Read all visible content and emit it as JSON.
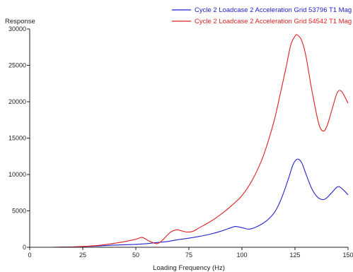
{
  "chart_data": {
    "type": "line",
    "xlabel": "Loading Frequency (Hz)",
    "ylabel": "Response",
    "xlim": [
      0,
      150
    ],
    "ylim": [
      0,
      30000
    ],
    "xticks": [
      0,
      25,
      50,
      75,
      100,
      125,
      150
    ],
    "yticks": [
      0,
      5000,
      10000,
      15000,
      20000,
      25000,
      30000
    ],
    "xtick_labels": [
      "0",
      "25",
      "50",
      "75",
      "100",
      "125",
      "150"
    ],
    "ytick_labels": [
      "0",
      "5000",
      "10000",
      "15000",
      "20000",
      "25000",
      "30000"
    ],
    "grid": false,
    "legend_position": "top-right",
    "series": [
      {
        "name": "Cycle 2 Loadcase 2 Acceleration Grid 53796 T1 Mag",
        "color": "#2222cc",
        "x": [
          10,
          20,
          30,
          40,
          50,
          55,
          60,
          65,
          70,
          75,
          80,
          85,
          90,
          95,
          97,
          100,
          103,
          106,
          110,
          113,
          116,
          119,
          122,
          124,
          126,
          128,
          130,
          133,
          136,
          139,
          142,
          145,
          147,
          150
        ],
        "y": [
          0,
          50,
          150,
          300,
          400,
          500,
          650,
          800,
          1050,
          1250,
          1500,
          1800,
          2200,
          2700,
          2850,
          2700,
          2500,
          2700,
          3300,
          4000,
          5100,
          7000,
          9500,
          11300,
          12100,
          11700,
          10200,
          8000,
          6800,
          6600,
          7400,
          8300,
          8100,
          7200
        ]
      },
      {
        "name": "Cycle 2 Loadcase 2 Acceleration Grid 54542 T1 Mag",
        "color": "#dd2222",
        "x": [
          10,
          20,
          30,
          35,
          40,
          45,
          50,
          53,
          56,
          60,
          63,
          66,
          69,
          71,
          74,
          77,
          80,
          85,
          90,
          95,
          100,
          105,
          110,
          115,
          118,
          121,
          123,
          125,
          126,
          128,
          130,
          133,
          136,
          138,
          140,
          143,
          145,
          147,
          150
        ],
        "y": [
          0,
          50,
          200,
          350,
          550,
          800,
          1100,
          1350,
          900,
          500,
          1100,
          2000,
          2400,
          2300,
          2100,
          2200,
          2700,
          3500,
          4500,
          5700,
          7100,
          9300,
          12500,
          17200,
          21000,
          25000,
          27800,
          29000,
          29200,
          28500,
          26500,
          21500,
          17200,
          16000,
          16600,
          19500,
          21300,
          21400,
          19800
        ]
      }
    ]
  }
}
